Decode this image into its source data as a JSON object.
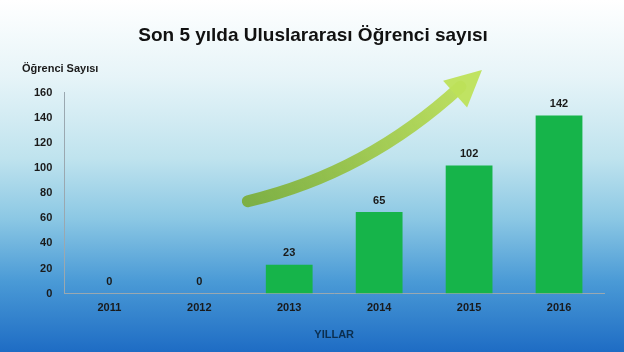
{
  "chart_data": {
    "type": "bar",
    "title": "Son 5 yılda Uluslararası Öğrenci sayısı",
    "ylabel": "Öğrenci Sayısı",
    "xlabel": "YILLAR",
    "categories": [
      "2011",
      "2012",
      "2013",
      "2014",
      "2015",
      "2016"
    ],
    "values": [
      0,
      0,
      23,
      65,
      102,
      142
    ],
    "color": "#16b44a",
    "ylim": [
      0,
      160
    ],
    "yticks": [
      0,
      20,
      40,
      60,
      80,
      100,
      120,
      140,
      160
    ],
    "grid": false,
    "data_labels": true
  }
}
